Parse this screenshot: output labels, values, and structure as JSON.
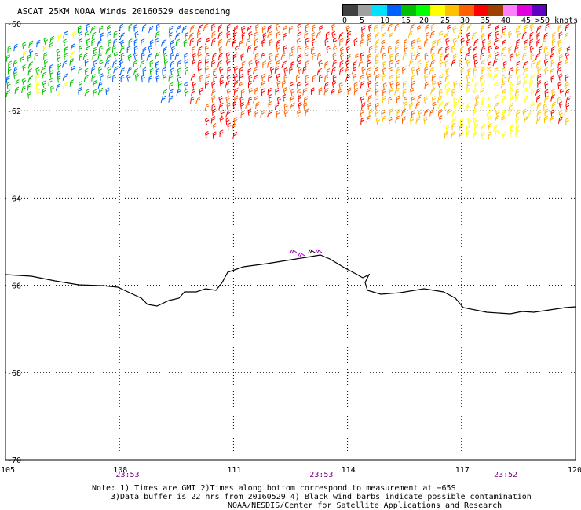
{
  "title": "ASCAT 25KM NOAA Winds 20160529 descending",
  "legend": {
    "colors": [
      "#404040",
      "#a0a0a0",
      "#00e0ff",
      "#0060ff",
      "#00c000",
      "#00ff00",
      "#ffff00",
      "#ffc000",
      "#ff6000",
      "#ff0000",
      "#a04000",
      "#ff80ff",
      "#e000e0",
      "#6000c0"
    ],
    "labels": [
      "0",
      "5",
      "10",
      "15",
      "20",
      "25",
      "30",
      "35",
      "40",
      "45",
      ">50 knots"
    ]
  },
  "map": {
    "lon_ticks": [
      "105",
      "108",
      "111",
      "114",
      "117",
      "120"
    ],
    "lat_ticks": [
      "-60",
      "-62",
      "-64",
      "-66",
      "-68",
      "-70"
    ],
    "lon_range": [
      105,
      120
    ],
    "lat_range": [
      -60,
      -70
    ],
    "times": [
      "23:53",
      "23:53",
      "23:52"
    ]
  },
  "notes": {
    "line1": "Note: 1) Times are GMT 2)Times along bottom correspond to measurement at −65S",
    "line2": "3)Data buffer is 22 hrs from 20160529 4) Black wind barbs indicate possible contamination",
    "line3": "NOAA/NESDIS/Center for Satellite Applications and Research"
  }
}
